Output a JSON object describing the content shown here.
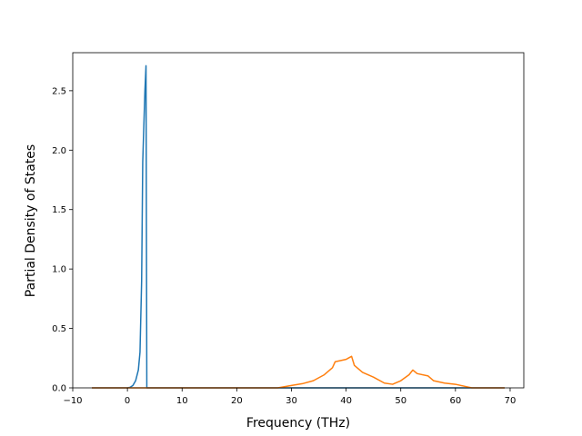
{
  "chart_data": {
    "type": "line",
    "title": "",
    "xlabel": "Frequency (THz)",
    "ylabel": "Partial Density of States",
    "xlim": [
      -10,
      72.5
    ],
    "ylim": [
      0,
      2.82
    ],
    "xticks": [
      -10,
      0,
      10,
      20,
      30,
      40,
      50,
      60,
      70
    ],
    "xtick_labels": [
      "−10",
      "0",
      "10",
      "20",
      "30",
      "40",
      "50",
      "60",
      "70"
    ],
    "yticks": [
      0.0,
      0.5,
      1.0,
      1.5,
      2.0,
      2.5
    ],
    "ytick_labels": [
      "0.0",
      "0.5",
      "1.0",
      "1.5",
      "2.0",
      "2.5"
    ],
    "grid": false,
    "legend": "none",
    "series": [
      {
        "color": "#1f77b4",
        "x": [
          -6.5,
          0.0,
          0.5,
          1.0,
          1.5,
          2.0,
          2.3,
          2.6,
          2.8,
          3.0,
          3.2,
          3.4,
          3.55,
          3.7,
          3.8,
          10,
          20,
          30,
          40,
          50,
          60,
          69
        ],
        "y": [
          0.0,
          0.0,
          0.005,
          0.02,
          0.06,
          0.15,
          0.3,
          0.9,
          1.9,
          2.2,
          2.5,
          2.71,
          0.0,
          0.0,
          0.0,
          0.0,
          0.0,
          0.0,
          0.0,
          0.0,
          0.0,
          0.0
        ]
      },
      {
        "color": "#ff7f0e",
        "x": [
          -6.5,
          0,
          10,
          20,
          27.5,
          30,
          32,
          34,
          36,
          37.5,
          38,
          40,
          41,
          41.5,
          43,
          45,
          47,
          48.5,
          50,
          51.5,
          52.2,
          53,
          55,
          56,
          58,
          60,
          62,
          63,
          65,
          69
        ],
        "y": [
          0.0,
          0.0,
          0.0,
          0.0,
          0.0,
          0.02,
          0.035,
          0.06,
          0.11,
          0.17,
          0.22,
          0.24,
          0.265,
          0.19,
          0.13,
          0.09,
          0.04,
          0.03,
          0.06,
          0.11,
          0.15,
          0.12,
          0.1,
          0.06,
          0.04,
          0.03,
          0.01,
          0.0,
          0.0,
          0.0
        ]
      }
    ]
  }
}
